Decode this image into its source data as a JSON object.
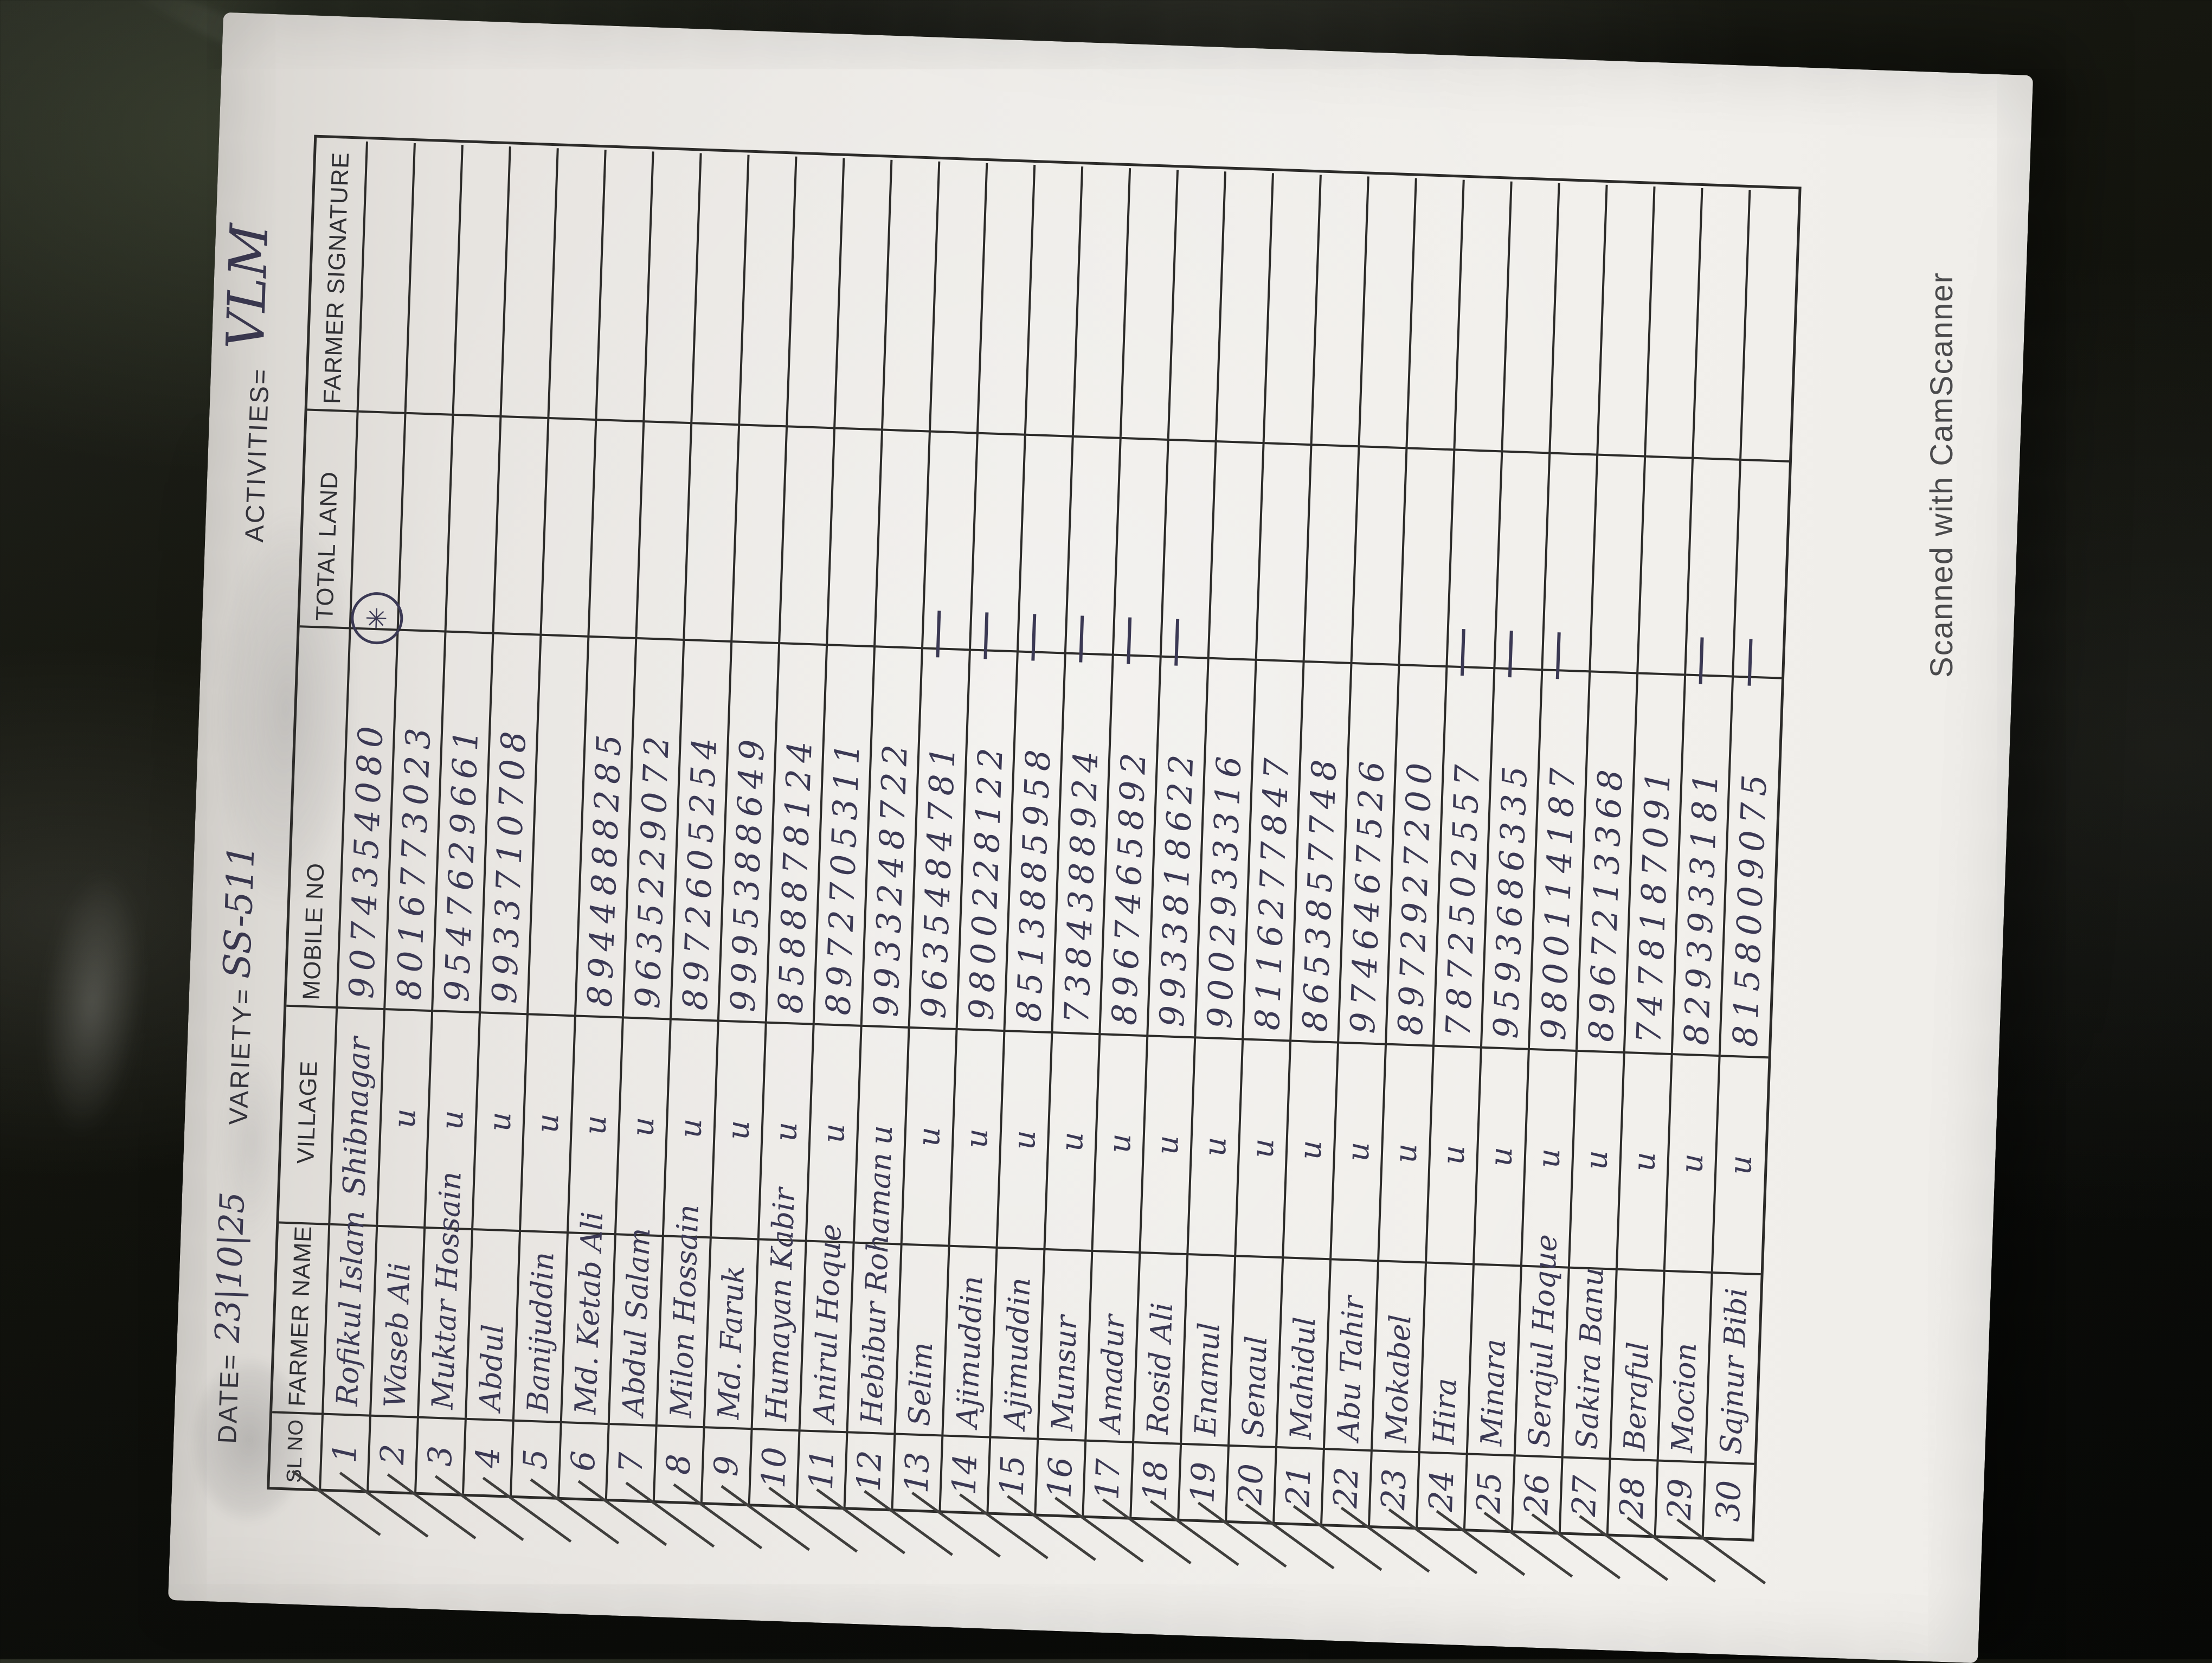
{
  "scan": {
    "watermark": "Scanned with CamScanner",
    "paper_color": "#efede9",
    "background_color": "#15160f",
    "ink_color": "#3b3954",
    "grid_color": "#2c2b29"
  },
  "page_header": {
    "date_label": "DATE=",
    "date_value": "23|10|25",
    "variety_label": "VARIETY=",
    "variety_value": "SS-511",
    "activities_label": "ACTIVITIES=",
    "activities_value": "VLM"
  },
  "table": {
    "columns": [
      "SL NO",
      "FARMER NAME",
      "VILLAGE",
      "MOBILE NO",
      "TOTAL LAND",
      "FARMER SIGNATURE"
    ],
    "village_ditto_symbol": "u",
    "rows": [
      {
        "sl": "1",
        "name": "Rofikul Islam",
        "village": "Shibnagar",
        "mobile": "9074354080",
        "total_land": "circled-star-doodle",
        "signature": ""
      },
      {
        "sl": "2",
        "name": "Waseb Ali",
        "village": "u",
        "mobile": "8016773023",
        "total_land": "",
        "signature": ""
      },
      {
        "sl": "3",
        "name": "Muktar Hossain",
        "village": "u",
        "mobile": "9547629661",
        "total_land": "",
        "signature": ""
      },
      {
        "sl": "4",
        "name": "Abdul",
        "village": "u",
        "mobile": "9933710708",
        "total_land": "",
        "signature": ""
      },
      {
        "sl": "5",
        "name": "Banijuddin",
        "village": "u",
        "mobile": "",
        "total_land": "",
        "signature": ""
      },
      {
        "sl": "6",
        "name": "Md. Ketab Ali",
        "village": "u",
        "mobile": "8944888285",
        "total_land": "",
        "signature": ""
      },
      {
        "sl": "7",
        "name": "Abdul Salam",
        "village": "u",
        "mobile": "9635229072",
        "total_land": "",
        "signature": ""
      },
      {
        "sl": "8",
        "name": "Milon Hossain",
        "village": "u",
        "mobile": "8972605254",
        "total_land": "",
        "signature": ""
      },
      {
        "sl": "9",
        "name": "Md. Faruk",
        "village": "u",
        "mobile": "9995388649",
        "total_land": "",
        "signature": ""
      },
      {
        "sl": "10",
        "name": "Humayan Kabir",
        "village": "u",
        "mobile": "8588878124",
        "total_land": "",
        "signature": ""
      },
      {
        "sl": "11",
        "name": "Anirul Hoque",
        "village": "u",
        "mobile": "8972705311",
        "total_land": "",
        "signature": ""
      },
      {
        "sl": "12",
        "name": "Hebibur Rohaman",
        "village": "u",
        "mobile": "9933248722",
        "total_land": "",
        "signature": ""
      },
      {
        "sl": "13",
        "name": "Selim",
        "village": "u",
        "mobile": "9635484781",
        "total_land": "dash",
        "signature": ""
      },
      {
        "sl": "14",
        "name": "Ajimuddin",
        "village": "u",
        "mobile": "9800228122",
        "total_land": "dash",
        "signature": ""
      },
      {
        "sl": "15",
        "name": "Ajimuddin",
        "village": "u",
        "mobile": "8513885958",
        "total_land": "dash",
        "signature": ""
      },
      {
        "sl": "16",
        "name": "Munsur",
        "village": "u",
        "mobile": "7384388924",
        "total_land": "dash",
        "signature": ""
      },
      {
        "sl": "17",
        "name": "Amadur",
        "village": "u",
        "mobile": "8967465892",
        "total_land": "dash",
        "signature": ""
      },
      {
        "sl": "18",
        "name": "Rosid Ali",
        "village": "u",
        "mobile": "9933818622",
        "total_land": "dash",
        "signature": ""
      },
      {
        "sl": "19",
        "name": "Enamul",
        "village": "u",
        "mobile": "9002933316",
        "total_land": "",
        "signature": ""
      },
      {
        "sl": "20",
        "name": "Senaul",
        "village": "u",
        "mobile": "8116277847",
        "total_land": "",
        "signature": ""
      },
      {
        "sl": "21",
        "name": "Mahidul",
        "village": "u",
        "mobile": "8653857748",
        "total_land": "",
        "signature": ""
      },
      {
        "sl": "22",
        "name": "Abu Tahir",
        "village": "u",
        "mobile": "9746467526",
        "total_land": "",
        "signature": ""
      },
      {
        "sl": "23",
        "name": "Mokabel",
        "village": "u",
        "mobile": "8972927200",
        "total_land": "",
        "signature": ""
      },
      {
        "sl": "24",
        "name": "Hira",
        "village": "u",
        "mobile": "7872502557",
        "total_land": "dash",
        "signature": ""
      },
      {
        "sl": "25",
        "name": "Minara",
        "village": "u",
        "mobile": "9593686335",
        "total_land": "dash",
        "signature": ""
      },
      {
        "sl": "26",
        "name": "Serajul Hoque",
        "village": "u",
        "mobile": "9800114187",
        "total_land": "dash",
        "signature": ""
      },
      {
        "sl": "27",
        "name": "Sakira Banu",
        "village": "u",
        "mobile": "8967213368",
        "total_land": "",
        "signature": ""
      },
      {
        "sl": "28",
        "name": "Beraful",
        "village": "u",
        "mobile": "7478187091",
        "total_land": "",
        "signature": ""
      },
      {
        "sl": "29",
        "name": "Mocion",
        "village": "u",
        "mobile": "8293933181",
        "total_land": "dash",
        "signature": ""
      },
      {
        "sl": "30",
        "name": "Sajnur Bibi",
        "village": "u",
        "mobile": "8158009075",
        "total_land": "dash",
        "signature": ""
      }
    ]
  }
}
